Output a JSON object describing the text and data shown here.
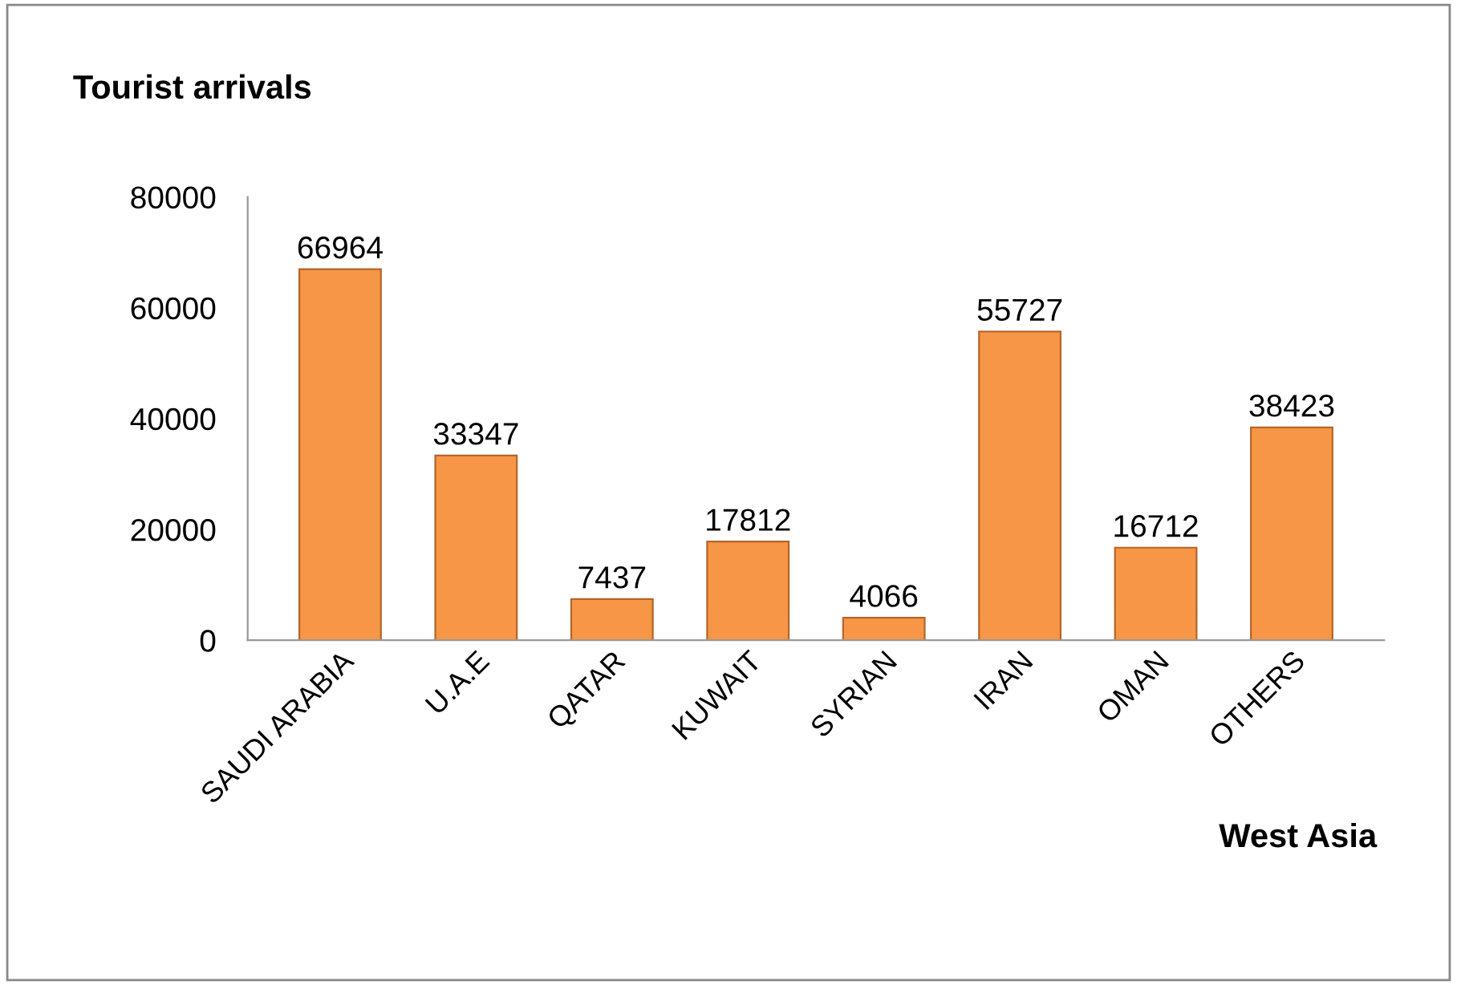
{
  "chart_data": {
    "type": "bar",
    "title": "Tourist arrivals",
    "xlabel": "West Asia",
    "categories": [
      "SAUDI ARABIA",
      "U.A.E",
      "QATAR",
      "KUWAIT",
      "SYRIAN",
      "IRAN",
      "OMAN",
      "OTHERS"
    ],
    "values": [
      66964,
      33347,
      7437,
      17812,
      4066,
      55727,
      16712,
      38423
    ],
    "color": "#f79646",
    "ylim": [
      0,
      80000
    ],
    "yticks": [
      0,
      20000,
      40000,
      60000,
      80000
    ],
    "grid": false,
    "data_labels": true
  }
}
